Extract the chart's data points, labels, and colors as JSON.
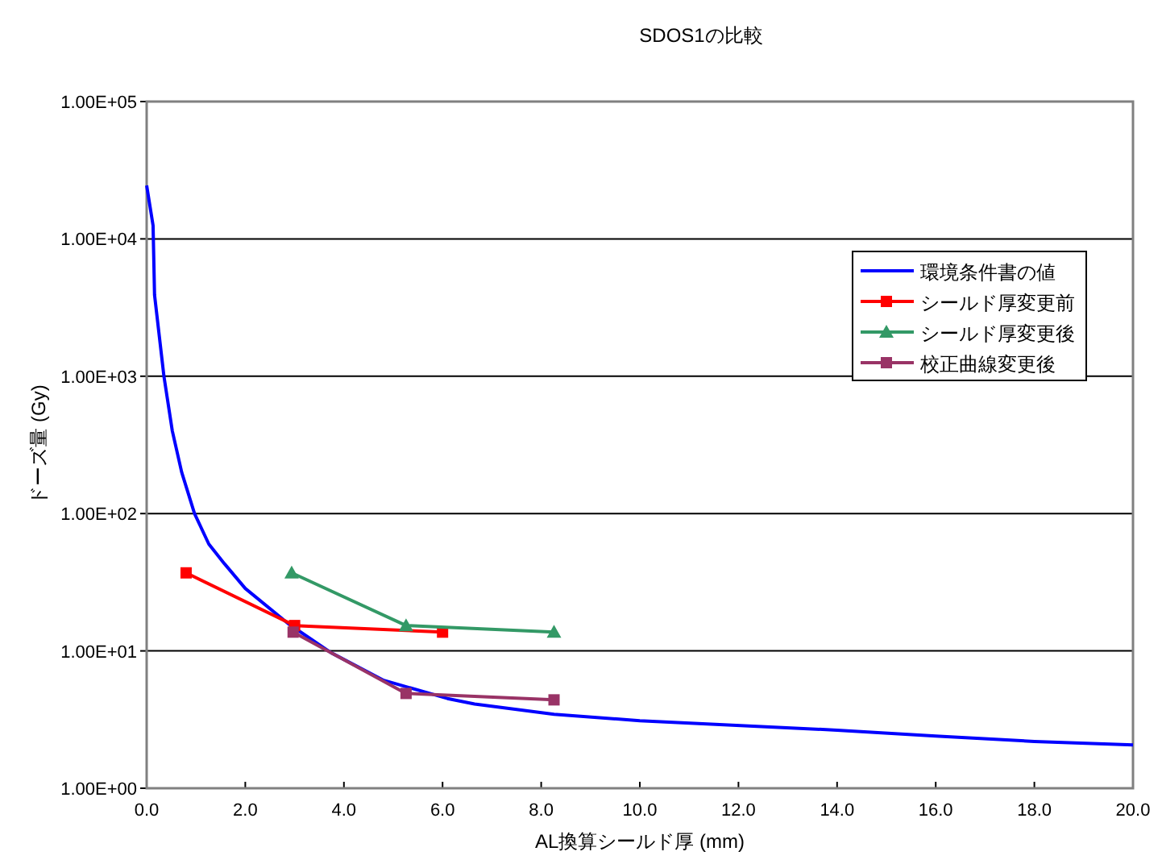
{
  "chart_data": {
    "type": "line",
    "title": "SDOS1の比較",
    "xlabel": "AL換算シールド厚 (mm)",
    "ylabel": "ドーズ量 (Gy)",
    "log": "y",
    "grid": "y",
    "legend": "top right",
    "xlim": [
      0,
      20
    ],
    "xticks": [
      {
        "value": 0,
        "label": "0.0"
      },
      {
        "value": 2,
        "label": "2.0"
      },
      {
        "value": 4,
        "label": "4.0"
      },
      {
        "value": 6,
        "label": "6.0"
      },
      {
        "value": 8,
        "label": "8.0"
      },
      {
        "value": 10,
        "label": "10.0"
      },
      {
        "value": 12,
        "label": "12.0"
      },
      {
        "value": 14,
        "label": "14.0"
      },
      {
        "value": 16,
        "label": "16.0"
      },
      {
        "value": 18,
        "label": "18.0"
      },
      {
        "value": 20,
        "label": "20.0"
      }
    ],
    "ylim": [
      1,
      100000
    ],
    "yticks": [
      {
        "value": 1,
        "label": "1.00E+00"
      },
      {
        "value": 10,
        "label": "1.00E+01"
      },
      {
        "value": 100,
        "label": "1.00E+02"
      },
      {
        "value": 1000,
        "label": "1.00E+03"
      },
      {
        "value": 10000,
        "label": "1.00E+04"
      },
      {
        "value": 100000,
        "label": "1.00E+05"
      }
    ],
    "series": [
      {
        "name": "環境条件書の値",
        "color": "#0000ff",
        "marker": "none",
        "x": [
          0,
          0.13,
          0.16,
          0.35,
          0.52,
          0.71,
          0.97,
          1.26,
          1.58,
          2.0,
          2.87,
          3.74,
          4.81,
          6.1,
          6.65,
          8.26,
          10,
          14,
          16,
          18,
          20
        ],
        "values": [
          24500,
          12500,
          3900,
          1000,
          400,
          200,
          100,
          60,
          43,
          28.5,
          15.8,
          9.7,
          6.1,
          4.5,
          4.1,
          3.46,
          3.1,
          2.65,
          2.4,
          2.19,
          2.07
        ]
      },
      {
        "name": "シールド厚変更前",
        "color": "#ff0000",
        "marker": "square",
        "x": [
          0.8,
          3.0,
          6.0
        ],
        "values": [
          37,
          15.3,
          13.7
        ]
      },
      {
        "name": "シールド厚変更後",
        "color": "#339966",
        "marker": "triangle",
        "x": [
          2.94,
          5.26,
          8.26
        ],
        "values": [
          37,
          15.3,
          13.7
        ]
      },
      {
        "name": "校正曲線変更後",
        "color": "#993366",
        "marker": "square",
        "x": [
          2.97,
          5.26,
          8.26
        ],
        "values": [
          13.7,
          4.9,
          4.4
        ]
      }
    ]
  }
}
